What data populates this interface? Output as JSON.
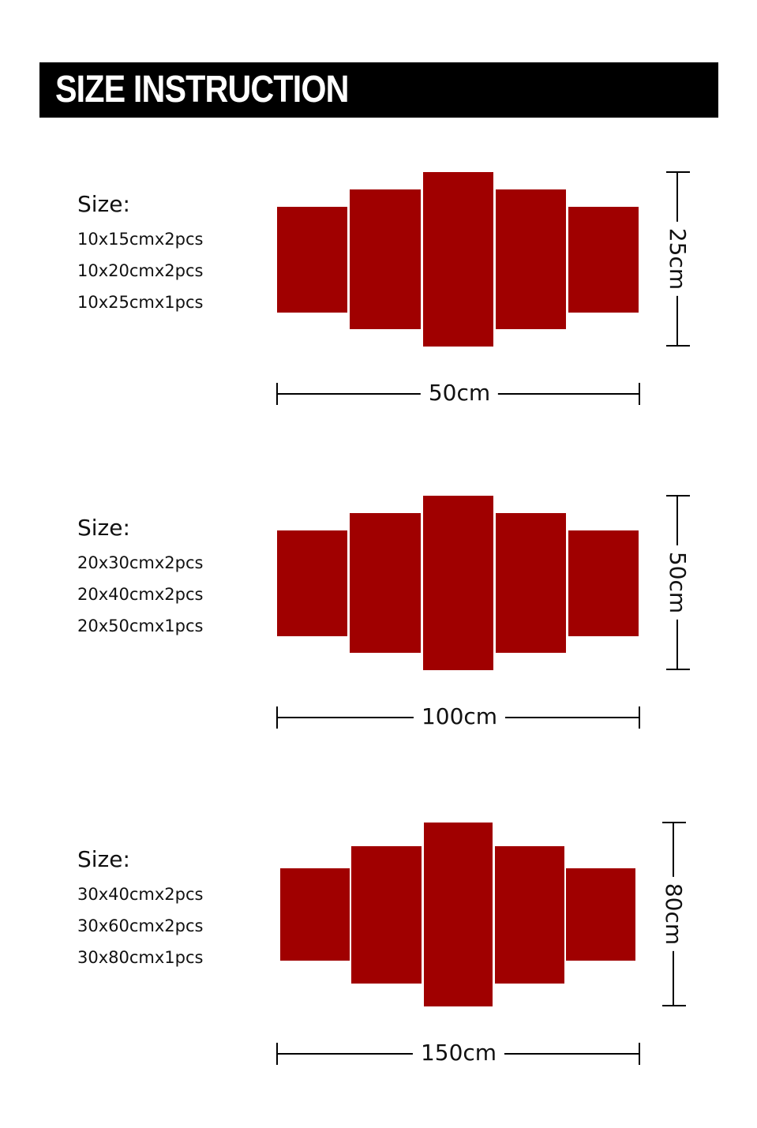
{
  "header": {
    "title": "SIZE INSTRUCTION"
  },
  "colors": {
    "panel": "#a00000",
    "banner": "#000000"
  },
  "sections": [
    {
      "size_label": "Size:",
      "lines": [
        "10x15cmx2pcs",
        "10x20cmx2pcs",
        "10x25cmx1pcs"
      ],
      "width_label": "50cm",
      "height_label": "25cm"
    },
    {
      "size_label": "Size:",
      "lines": [
        "20x30cmx2pcs",
        "20x40cmx2pcs",
        "20x50cmx1pcs"
      ],
      "width_label": "100cm",
      "height_label": "50cm"
    },
    {
      "size_label": "Size:",
      "lines": [
        "30x40cmx2pcs",
        "30x60cmx2pcs",
        "30x80cmx1pcs"
      ],
      "width_label": "150cm",
      "height_label": "80cm"
    }
  ]
}
